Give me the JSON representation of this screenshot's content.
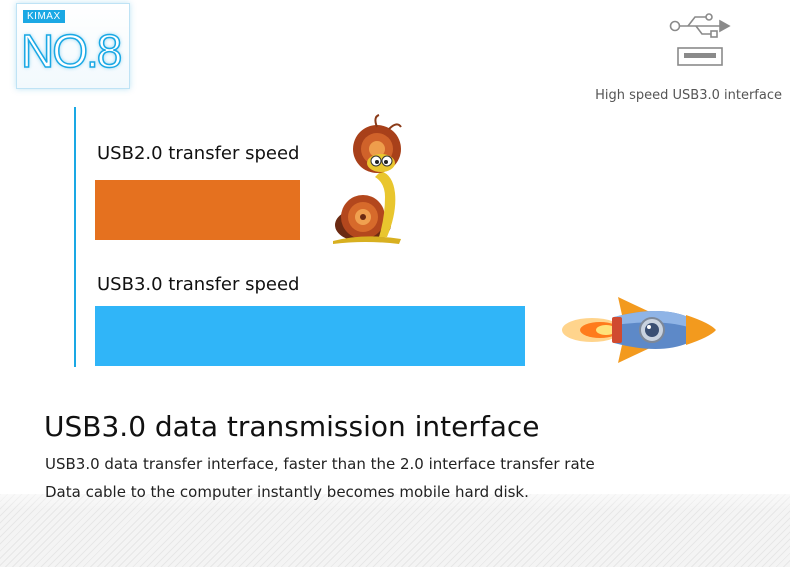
{
  "badge": {
    "brand": "KIMAX",
    "number": "NO.8"
  },
  "interface": {
    "caption": "High speed USB3.0 interface",
    "icon": "usb-icon"
  },
  "colors": {
    "usb2_bar": "#e5711f",
    "usb3_bar": "#30b5f8",
    "accent": "#1aa8e4"
  },
  "speeds": [
    {
      "label": "USB2.0 transfer speed",
      "relative_speed": 0.41,
      "icon": "snail-icon"
    },
    {
      "label": "USB3.0 transfer speed",
      "relative_speed": 0.86,
      "icon": "rocket-icon"
    }
  ],
  "feature": {
    "title": "USB3.0 data transmission interface",
    "lines": [
      "USB3.0 data transfer interface, faster than the 2.0 interface transfer rate",
      "Data cable to the computer instantly becomes mobile hard disk."
    ]
  }
}
